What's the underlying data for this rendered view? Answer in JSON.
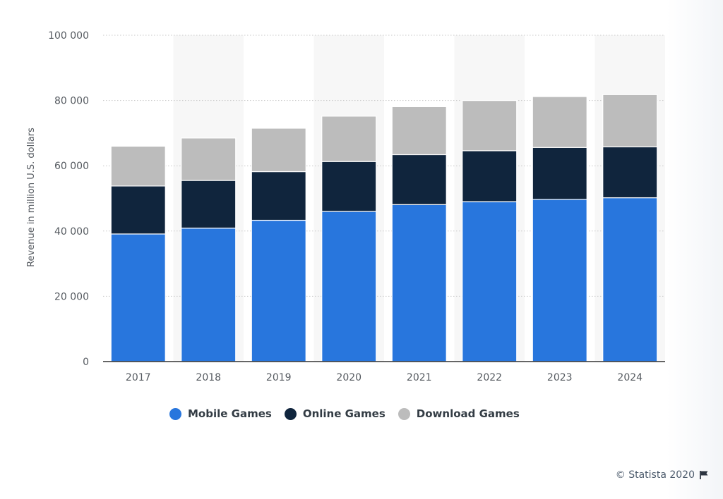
{
  "colors": {
    "mobile": "#2876dd",
    "online": "#10253d",
    "download": "#bcbcbc",
    "band": "#f7f7f7",
    "grid": "#c8c8c8",
    "axis": "#333333"
  },
  "chart_data": {
    "type": "bar",
    "stacked": true,
    "title": "",
    "xlabel": "",
    "ylabel": "Revenue in million U.S. dollars",
    "categories": [
      "2017",
      "2018",
      "2019",
      "2020",
      "2021",
      "2022",
      "2023",
      "2024"
    ],
    "ylim": [
      0,
      100000
    ],
    "yticks": [
      0,
      20000,
      40000,
      60000,
      80000,
      100000
    ],
    "ytick_labels": [
      "0",
      "20 000",
      "40 000",
      "60 000",
      "80 000",
      "100 000"
    ],
    "grid": true,
    "legend_position": "bottom",
    "series": [
      {
        "name": "Mobile Games",
        "values": [
          39100,
          40900,
          43300,
          46000,
          48100,
          49000,
          49700,
          50200
        ]
      },
      {
        "name": "Online Games",
        "values": [
          14700,
          14600,
          14900,
          15300,
          15300,
          15600,
          15900,
          15600
        ]
      },
      {
        "name": "Download Games",
        "values": [
          12200,
          13000,
          13300,
          13900,
          14700,
          15400,
          15600,
          16000
        ]
      }
    ]
  },
  "legend": {
    "mobile_label": "Mobile Games",
    "online_label": "Online Games",
    "download_label": "Download Games"
  },
  "footer": {
    "credit": "© Statista 2020"
  }
}
